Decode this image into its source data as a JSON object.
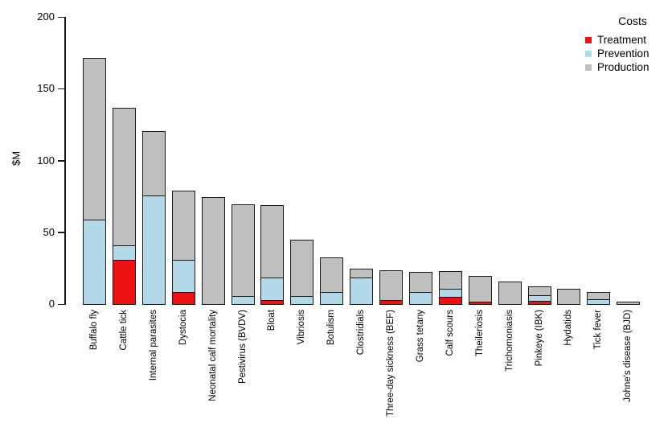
{
  "figure": {
    "background": "#ffffff",
    "axis_color": "#1a1a1a"
  },
  "chart_data": {
    "type": "bar",
    "stacked": true,
    "title": "",
    "xlabel": "",
    "ylabel": "$M",
    "ylim": [
      0,
      200
    ],
    "yticks": [
      0,
      50,
      100,
      150,
      200
    ],
    "grid": false,
    "legend_title": "Costs",
    "legend_position": "top-right",
    "categories": [
      "Buffalo fly",
      "Cattle tick",
      "Internal parasites",
      "Dystocia",
      "Neonatal calf mortality",
      "Pestivirus (BVDV)",
      "Bloat",
      "Vibriosis",
      "Botulism",
      "Clostridials",
      "Three-day sickness (BEF)",
      "Grass tetany",
      "Calf scours",
      "Theileriosis",
      "Trichomoniasis",
      "Pinkeye (IBK)",
      "Hydatids",
      "Tick fever",
      "Johne's disease (BJD)"
    ],
    "series": [
      {
        "name": "Treatment",
        "color": "#ee1111",
        "values": [
          0,
          30,
          0,
          8,
          0,
          0,
          2,
          0,
          0,
          0,
          2,
          0,
          4.5,
          1,
          0,
          1.5,
          0,
          0,
          0
        ]
      },
      {
        "name": "Prevention",
        "color": "#b3d9e8",
        "values": [
          58,
          9,
          75,
          21,
          0,
          5,
          15,
          5,
          8,
          18,
          0,
          8,
          4.5,
          0,
          0,
          3,
          0,
          3,
          0
        ]
      },
      {
        "name": "Production",
        "color": "#bfbfbf",
        "values": [
          112,
          95,
          44,
          47,
          74,
          63,
          49,
          38,
          23,
          5,
          20,
          13,
          11,
          17,
          15,
          5,
          10,
          4,
          1
        ]
      }
    ]
  }
}
